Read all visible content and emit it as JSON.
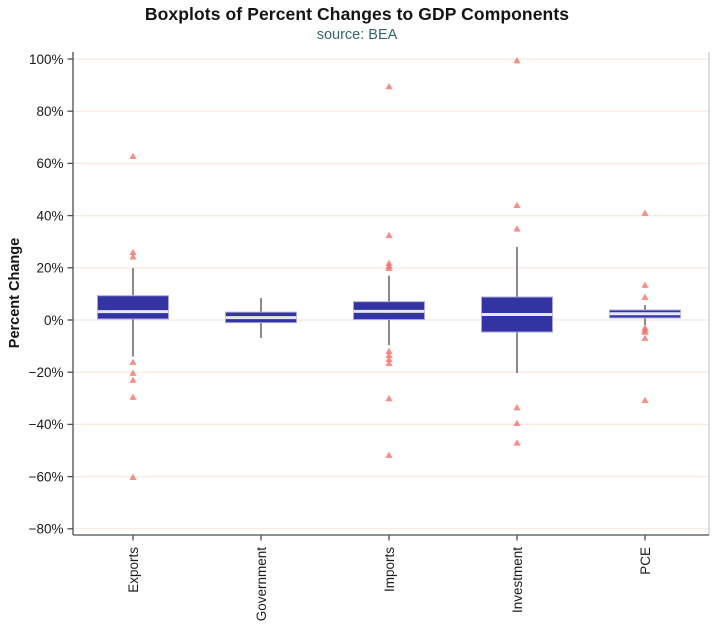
{
  "header": {
    "title": "Boxplots of Percent Changes to GDP Components",
    "subtitle": "source: BEA"
  },
  "chart_data": {
    "type": "boxplot",
    "title": "Boxplots of Percent Changes to GDP Components",
    "subtitle": "source: BEA",
    "xlabel": "",
    "ylabel": "Percent Change",
    "ylim": [
      -80,
      100
    ],
    "grid": "horizontal-only",
    "legend": "none",
    "outlier_marker": "triangle-up",
    "yticks": [
      {
        "value": 100,
        "label": "100%"
      },
      {
        "value": 80,
        "label": "80%"
      },
      {
        "value": 60,
        "label": "60%"
      },
      {
        "value": 40,
        "label": "40%"
      },
      {
        "value": 20,
        "label": "20%"
      },
      {
        "value": 0,
        "label": "0%"
      },
      {
        "value": -20,
        "label": "−20%"
      },
      {
        "value": -40,
        "label": "−40%"
      },
      {
        "value": -60,
        "label": "−60%"
      },
      {
        "value": -80,
        "label": "−80%"
      }
    ],
    "categories": [
      "Exports",
      "Government",
      "Imports",
      "Investment",
      "PCE"
    ],
    "series": [
      {
        "name": "Exports",
        "whisker_high": 19.9,
        "q3": 9.3,
        "median": 3.2,
        "q1": 0.4,
        "whisker_low": -14.0,
        "outliers": [
          62.8,
          26.0,
          24.3,
          -16.1,
          -20.3,
          -23.0,
          -29.5,
          -60.2
        ]
      },
      {
        "name": "Government",
        "whisker_high": 8.4,
        "q3": 3.0,
        "median": 0.9,
        "q1": -1.0,
        "whisker_low": -6.9,
        "outliers": []
      },
      {
        "name": "Imports",
        "whisker_high": 17.0,
        "q3": 7.0,
        "median": 3.3,
        "q1": 0.2,
        "whisker_low": -9.6,
        "outliers": [
          89.5,
          32.5,
          21.8,
          20.7,
          19.9,
          -11.9,
          -13.4,
          -15.0,
          -16.5,
          -30.0,
          -51.7
        ]
      },
      {
        "name": "Investment",
        "whisker_high": 28.0,
        "q3": 8.8,
        "median": 2.1,
        "q1": -4.6,
        "whisker_low": -20.3,
        "outliers": [
          99.5,
          44.0,
          35.0,
          -33.5,
          -39.5,
          -47.0
        ]
      },
      {
        "name": "PCE",
        "whisker_high": 5.7,
        "q3": 3.8,
        "median": 2.4,
        "q1": 0.8,
        "whisker_low": -1.9,
        "outliers": [
          41.0,
          13.4,
          8.8,
          -2.9,
          -3.8,
          -4.6,
          -6.9,
          -30.7
        ]
      }
    ],
    "colors": {
      "box_fill": "#3433A2",
      "box_border": "#A6A6DC",
      "median": "#E6E6F5",
      "whisker": "#8A8A8A",
      "outlier": "#F2706A",
      "gridline": "#FAE8E1",
      "axis_line": "#4D4D4D",
      "panel_right_border": "#BDBDBD",
      "subtitle_color": "#336666",
      "text": "#1A1A1A"
    }
  }
}
